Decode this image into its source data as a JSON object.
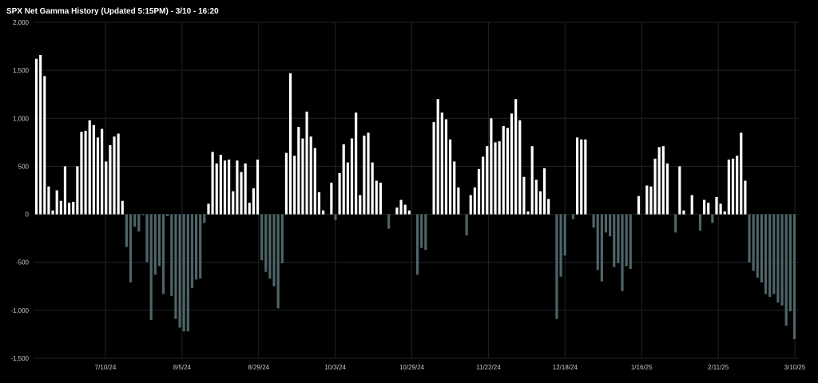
{
  "chart_data": {
    "type": "bar",
    "title": "SPX Net Gamma History (Updated 5:15PM) - 3/10 - 16:20",
    "xlabel": "",
    "ylabel": "",
    "ylim": [
      -1500,
      2000
    ],
    "yticks": [
      2000,
      1500,
      1000,
      500,
      0,
      -500,
      -1000,
      -1500
    ],
    "ytick_labels": [
      "2,000",
      "1,500",
      "1,000",
      "500",
      "0",
      "-500",
      "-1,000",
      "-1,500"
    ],
    "xtick_labels": [
      "7/10/24",
      "8/5/24",
      "8/29/24",
      "10/3/24",
      "10/29/24",
      "11/22/24",
      "12/18/24",
      "1/16/25",
      "2/11/25",
      "3/10/25"
    ],
    "grid": true,
    "colors": {
      "positive": "#ffffff",
      "negative": "#4e6468",
      "background": "#000000",
      "grid": "#1e2428"
    },
    "values": [
      1620,
      1660,
      1440,
      290,
      40,
      250,
      140,
      500,
      120,
      130,
      500,
      860,
      870,
      980,
      930,
      800,
      890,
      550,
      720,
      810,
      840,
      140,
      -340,
      -710,
      -130,
      -180,
      -10,
      -500,
      -1100,
      -630,
      -540,
      -830,
      -20,
      -850,
      -1090,
      -1180,
      -1220,
      -1220,
      -770,
      -680,
      -670,
      -90,
      110,
      650,
      530,
      620,
      560,
      570,
      240,
      560,
      440,
      530,
      120,
      270,
      570,
      -480,
      -600,
      -670,
      -750,
      -980,
      -510,
      640,
      1470,
      610,
      910,
      790,
      1070,
      810,
      690,
      230,
      40,
      0,
      330,
      -60,
      430,
      730,
      540,
      790,
      1060,
      200,
      820,
      850,
      540,
      350,
      330,
      0,
      -150,
      0,
      70,
      150,
      100,
      40,
      0,
      -630,
      -350,
      -370,
      0,
      960,
      1200,
      1060,
      990,
      780,
      550,
      280,
      0,
      -220,
      200,
      280,
      470,
      600,
      710,
      1000,
      750,
      760,
      920,
      900,
      1050,
      1200,
      980,
      390,
      30,
      710,
      360,
      240,
      480,
      160,
      0,
      -1090,
      -650,
      -430,
      0,
      -50,
      800,
      780,
      780,
      0,
      -140,
      -580,
      -700,
      -190,
      -230,
      -550,
      -510,
      -800,
      -540,
      -570,
      0,
      190,
      0,
      300,
      290,
      580,
      700,
      710,
      530,
      0,
      -190,
      500,
      40,
      0,
      200,
      0,
      -170,
      150,
      120,
      -90,
      180,
      110,
      30,
      570,
      580,
      610,
      850,
      350,
      -500,
      -590,
      -660,
      -710,
      -830,
      -860,
      -830,
      -920,
      -950,
      -1160,
      -1010,
      -1300
    ]
  }
}
